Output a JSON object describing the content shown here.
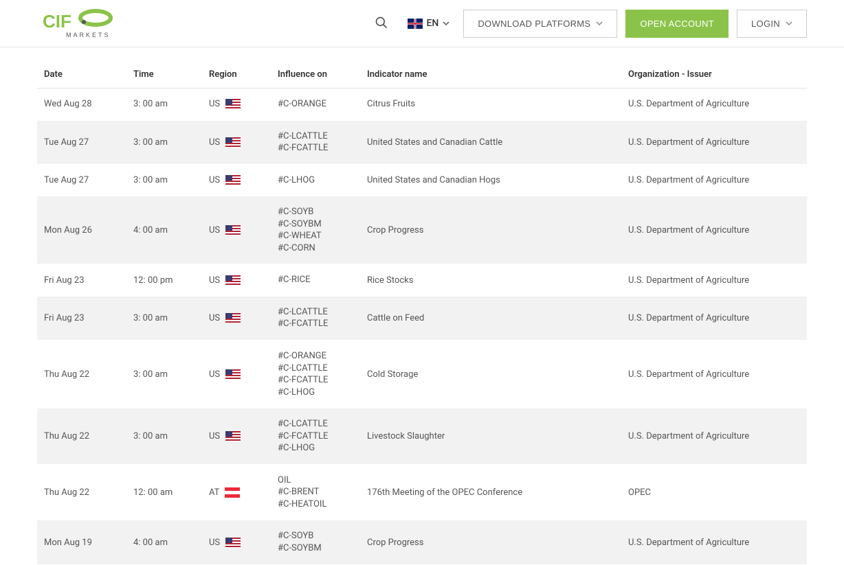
{
  "header": {
    "lang_code": "EN",
    "download_label": "DOWNLOAD PLATFORMS",
    "open_account_label": "OPEN ACCOUNT",
    "login_label": "LOGIN"
  },
  "table": {
    "columns": {
      "date": "Date",
      "time": "Time",
      "region": "Region",
      "influence": "Influence on",
      "indicator": "Indicator name",
      "org": "Organization - Issuer"
    },
    "rows": [
      {
        "date": "Wed Aug 28",
        "time": "3: 00 am",
        "region_code": "US",
        "region_flag": "us",
        "influence": [
          "#C-ORANGE"
        ],
        "indicator": "Citrus Fruits",
        "org": "U.S. Department of Agriculture"
      },
      {
        "date": "Tue Aug 27",
        "time": "3: 00 am",
        "region_code": "US",
        "region_flag": "us",
        "influence": [
          "#C-LCATTLE",
          "#C-FCATTLE"
        ],
        "indicator": "United States and Canadian Cattle",
        "org": "U.S. Department of Agriculture"
      },
      {
        "date": "Tue Aug 27",
        "time": "3: 00 am",
        "region_code": "US",
        "region_flag": "us",
        "influence": [
          "#C-LHOG"
        ],
        "indicator": "United States and Canadian Hogs",
        "org": "U.S. Department of Agriculture"
      },
      {
        "date": "Mon Aug 26",
        "time": "4: 00 am",
        "region_code": "US",
        "region_flag": "us",
        "influence": [
          "#C-SOYB",
          "#C-SOYBM",
          "#C-WHEAT",
          "#C-CORN"
        ],
        "indicator": "Crop Progress",
        "org": "U.S. Department of Agriculture"
      },
      {
        "date": "Fri Aug 23",
        "time": "12: 00 pm",
        "region_code": "US",
        "region_flag": "us",
        "influence": [
          "#C-RICE"
        ],
        "indicator": "Rice Stocks",
        "org": "U.S. Department of Agriculture"
      },
      {
        "date": "Fri Aug 23",
        "time": "3: 00 am",
        "region_code": "US",
        "region_flag": "us",
        "influence": [
          "#C-LCATTLE",
          "#C-FCATTLE"
        ],
        "indicator": "Cattle on Feed",
        "org": "U.S. Department of Agriculture"
      },
      {
        "date": "Thu Aug 22",
        "time": "3: 00 am",
        "region_code": "US",
        "region_flag": "us",
        "influence": [
          "#C-ORANGE",
          "#C-LCATTLE",
          "#C-FCATTLE",
          "#C-LHOG"
        ],
        "indicator": "Cold Storage",
        "org": "U.S. Department of Agriculture"
      },
      {
        "date": "Thu Aug 22",
        "time": "3: 00 am",
        "region_code": "US",
        "region_flag": "us",
        "influence": [
          "#C-LCATTLE",
          "#C-FCATTLE",
          "#C-LHOG"
        ],
        "indicator": "Livestock Slaughter",
        "org": "U.S. Department of Agriculture"
      },
      {
        "date": "Thu Aug 22",
        "time": "12: 00 am",
        "region_code": "AT",
        "region_flag": "at",
        "influence": [
          "OIL",
          "#C-BRENT",
          "#C-HEATOIL"
        ],
        "indicator": "176th Meeting of the OPEC Conference",
        "org": "OPEC"
      },
      {
        "date": "Mon Aug 19",
        "time": "4: 00 am",
        "region_code": "US",
        "region_flag": "us",
        "influence": [
          "#C-SOYB",
          "#C-SOYBM"
        ],
        "indicator": "Crop Progress",
        "org": "U.S. Department of Agriculture"
      }
    ]
  }
}
